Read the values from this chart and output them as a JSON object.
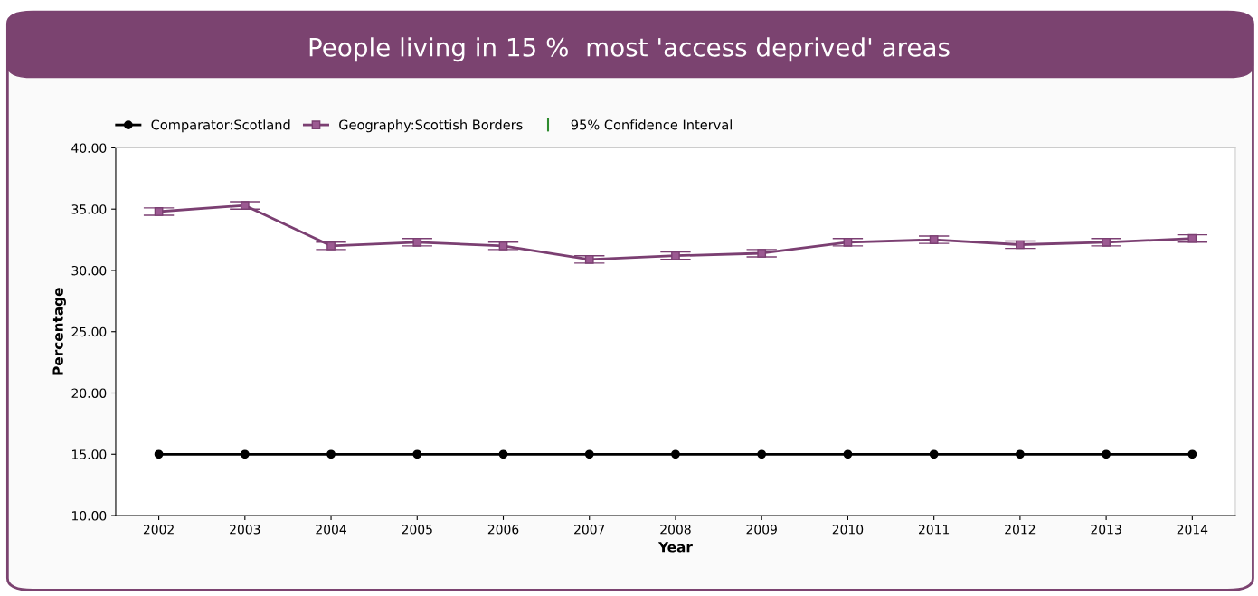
{
  "chart_data": {
    "type": "line",
    "title": "People living in 15 %  most 'access deprived' areas",
    "xlabel": "Year",
    "ylabel": "Percentage",
    "categories": [
      "2002",
      "2003",
      "2004",
      "2005",
      "2006",
      "2007",
      "2008",
      "2009",
      "2010",
      "2011",
      "2012",
      "2013",
      "2014"
    ],
    "series": [
      {
        "name": "Comparator:Scotland",
        "color": "#000000",
        "marker": "circle",
        "values": [
          15.0,
          15.0,
          15.0,
          15.0,
          15.0,
          15.0,
          15.0,
          15.0,
          15.0,
          15.0,
          15.0,
          15.0,
          15.0
        ]
      },
      {
        "name": "Geography:Scottish Borders",
        "color": "#7b3f72",
        "marker": "square",
        "values": [
          34.8,
          35.3,
          32.0,
          32.3,
          32.0,
          30.9,
          31.2,
          31.4,
          32.3,
          32.5,
          32.1,
          32.3,
          32.6
        ],
        "errors": [
          0.3,
          0.3,
          0.3,
          0.3,
          0.3,
          0.3,
          0.3,
          0.3,
          0.3,
          0.3,
          0.3,
          0.3,
          0.3
        ]
      }
    ],
    "ylim": [
      10,
      40
    ],
    "yticks": [
      {
        "value": 10,
        "label": "10.00"
      },
      {
        "value": 15,
        "label": "15.00"
      },
      {
        "value": 20,
        "label": "20.00"
      },
      {
        "value": 25,
        "label": "25.00"
      },
      {
        "value": 30,
        "label": "30.00"
      },
      {
        "value": 35,
        "label": "35.00"
      },
      {
        "value": 40,
        "label": "40.00"
      }
    ],
    "annotations": [
      "95% Confidence Interval"
    ],
    "legend": "top left",
    "grid": false,
    "line_style": "solid"
  }
}
